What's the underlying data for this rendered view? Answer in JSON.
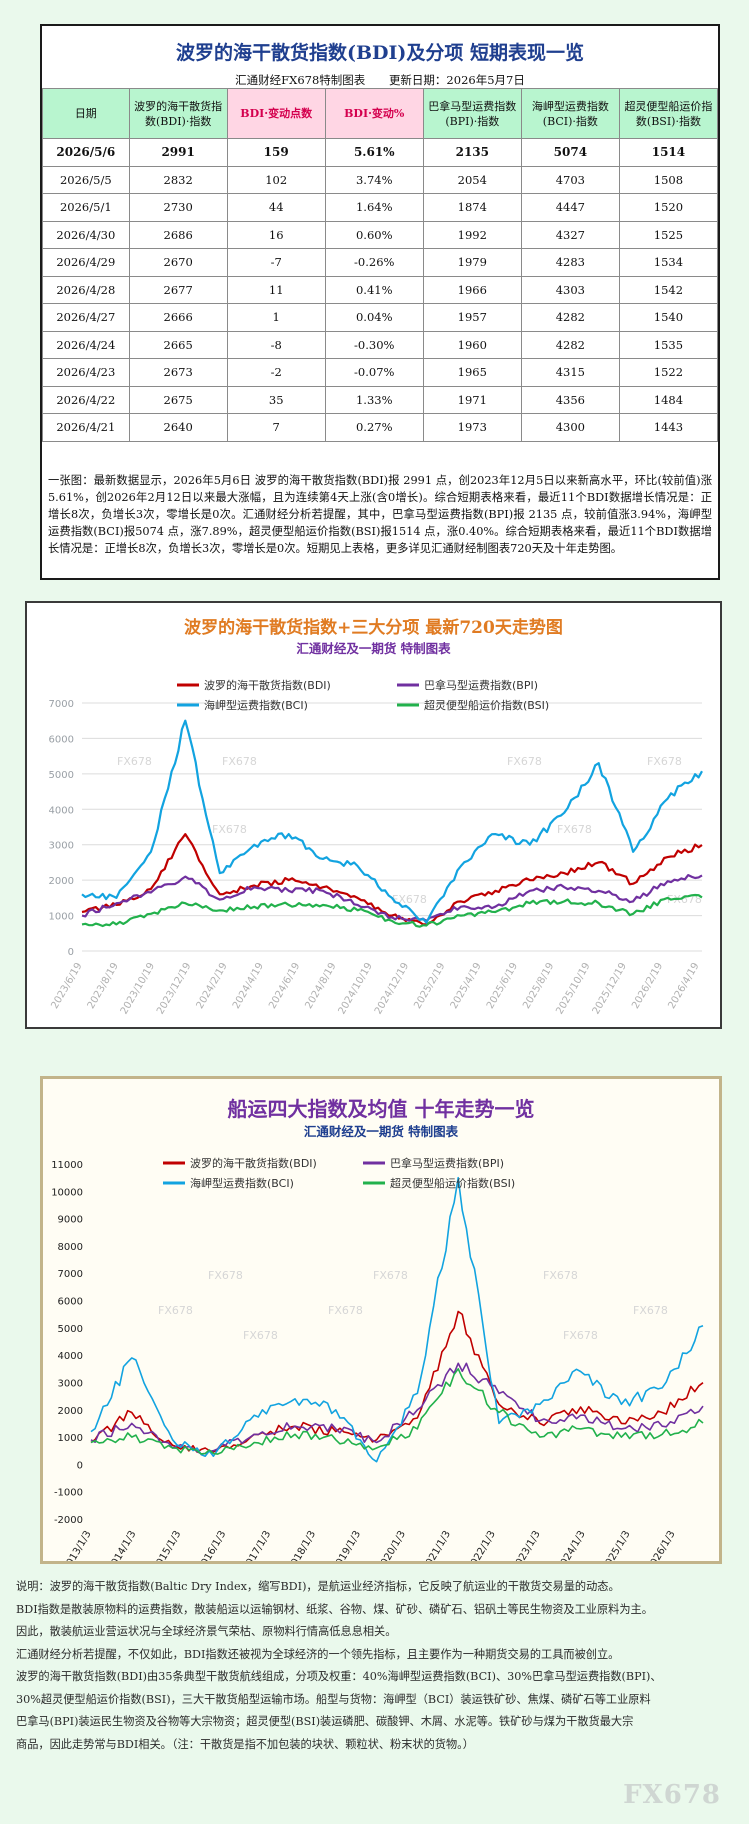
{
  "table_panel": {
    "title": "波罗的海干散货指数(BDI)及分项  短期表现一览",
    "subtitle_left": "汇通财经FX678特制图表",
    "subtitle_right": "更新日期：2026年5月7日",
    "headers": [
      "日期",
      "波罗的海干散货指数(BDI)·指数",
      "BDI·变动点数",
      "BDI·变动%",
      "巴拿马型运费指数(BPI)·指数",
      "海岬型运费指数(BCI)·指数",
      "超灵便型船运价指数(BSI)·指数"
    ],
    "highlight_colors": {
      "header_bg": "#b8f5cf",
      "highlight_bg": "#ffd6e4",
      "highlight_text": "#d4004e"
    },
    "rows": [
      [
        "2026/5/6",
        "2991",
        "159",
        "5.61%",
        "2135",
        "5074",
        "1514"
      ],
      [
        "2026/5/5",
        "2832",
        "102",
        "3.74%",
        "2054",
        "4703",
        "1508"
      ],
      [
        "2026/5/1",
        "2730",
        "44",
        "1.64%",
        "1874",
        "4447",
        "1520"
      ],
      [
        "2026/4/30",
        "2686",
        "16",
        "0.60%",
        "1992",
        "4327",
        "1525"
      ],
      [
        "2026/4/29",
        "2670",
        "-7",
        "-0.26%",
        "1979",
        "4283",
        "1534"
      ],
      [
        "2026/4/28",
        "2677",
        "11",
        "0.41%",
        "1966",
        "4303",
        "1542"
      ],
      [
        "2026/4/27",
        "2666",
        "1",
        "0.04%",
        "1957",
        "4282",
        "1540"
      ],
      [
        "2026/4/24",
        "2665",
        "-8",
        "-0.30%",
        "1960",
        "4282",
        "1535"
      ],
      [
        "2026/4/23",
        "2673",
        "-2",
        "-0.07%",
        "1965",
        "4315",
        "1522"
      ],
      [
        "2026/4/22",
        "2675",
        "35",
        "1.33%",
        "1971",
        "4356",
        "1484"
      ],
      [
        "2026/4/21",
        "2640",
        "7",
        "0.27%",
        "1973",
        "4300",
        "1443"
      ]
    ],
    "note": "一张图：最新数据显示，2026年5月6日 波罗的海干散货指数(BDI)报 2991 点，创2023年12月5日以来新高水平，环比(较前值)涨5.61%，创2026年2月12日以来最大涨幅，且为连续第4天上涨(含0增长)。综合短期表格来看，最近11个BDI数据增长情况是：正增长8次，负增长3次，零增长是0次。汇通财经分析若提醒，其中，巴拿马型运费指数(BPI)报 2135 点，较前值涨3.94%，海岬型运费指数(BCI)报5074 点，涨7.89%，超灵便型船运价指数(BSI)报1514 点，涨0.40%。综合短期表格来看，最近11个BDI数据增长情况是：正增长8次，负增长3次，零增长是0次。短期见上表格，更多详见汇通财经制图表720天及十年走势图。"
  },
  "chart_data": [
    {
      "type": "line",
      "title": "波罗的海干散货指数+三大分项  最新720天走势图",
      "subtitle": "汇通财经及一期货  特制图表",
      "title_color": "#e07b22",
      "subtitle_color": "#7030a0",
      "watermark": "FX678",
      "x": [
        "2023/6/19",
        "2023/8/19",
        "2023/10/19",
        "2023/12/19",
        "2024/2/19",
        "2024/4/19",
        "2024/6/19",
        "2024/8/19",
        "2024/10/19",
        "2024/12/19",
        "2025/2/19",
        "2025/4/19",
        "2025/6/19",
        "2025/8/19",
        "2025/10/19",
        "2025/12/19",
        "2026/2/19",
        "2026/4/19",
        "2026/5/6"
      ],
      "x_tick_labels": [
        "2023/6/19",
        "2023/8/19",
        "2023/10/19",
        "2023/12/19",
        "2024/2/19",
        "2024/4/19",
        "2024/6/19",
        "2024/8/19",
        "2024/10/19",
        "2024/12/19",
        "2025/2/19",
        "2025/4/19",
        "2025/6/19",
        "2025/8/19",
        "2025/10/19",
        "2025/12/19",
        "2026/2/19",
        "2026/4/19"
      ],
      "ylim": [
        0,
        7000
      ],
      "y_ticks": [
        0,
        1000,
        2000,
        3000,
        4000,
        5000,
        6000,
        7000
      ],
      "grid": true,
      "legend_position": "top",
      "series": [
        {
          "name": "波罗的海干散货指数(BDI)",
          "color": "#c00000",
          "values": [
            1100,
            1300,
            1750,
            3300,
            1600,
            1850,
            2000,
            1800,
            1500,
            1000,
            750,
            1400,
            1700,
            2000,
            2200,
            2500,
            1900,
            2650,
            2991
          ]
        },
        {
          "name": "巴拿马型运费指数(BPI)",
          "color": "#7030a0",
          "values": [
            1000,
            1350,
            1650,
            2100,
            1450,
            1800,
            1700,
            1700,
            1300,
            950,
            850,
            1250,
            1250,
            1700,
            1800,
            1700,
            1400,
            1970,
            2135
          ]
        },
        {
          "name": "海岬型运费指数(BCI)",
          "color": "#12a3e0",
          "values": [
            1600,
            1500,
            2800,
            6500,
            2200,
            3000,
            3300,
            2600,
            2400,
            1500,
            800,
            2400,
            3300,
            3000,
            3900,
            5300,
            2800,
            4300,
            5074
          ]
        },
        {
          "name": "超灵便型船运价指数(BSI)",
          "color": "#22b14c",
          "values": [
            750,
            750,
            1050,
            1350,
            1150,
            1250,
            1300,
            1300,
            1150,
            850,
            720,
            1000,
            1100,
            1350,
            1400,
            1350,
            1050,
            1500,
            1514
          ]
        }
      ]
    },
    {
      "type": "line",
      "title": "船运四大指数及均值  十年走势一览",
      "subtitle": "汇通财经及一期货  特制图表",
      "title_color": "#7030a0",
      "subtitle_color": "#1f3f8f",
      "watermark": "FX678",
      "x": [
        "2013/1/3",
        "2014/1/3",
        "2015/1/3",
        "2016/1/3",
        "2017/1/3",
        "2018/1/3",
        "2019/1/3",
        "2020/1/3",
        "2021/1/3",
        "2021/10/3",
        "2022/1/3",
        "2023/1/3",
        "2024/1/3",
        "2025/1/3",
        "2026/1/3",
        "2026/5/6"
      ],
      "x_tick_labels": [
        "2013/1/3",
        "2014/1/3",
        "2015/1/3",
        "2016/1/3",
        "2017/1/3",
        "2018/1/3",
        "2019/1/3",
        "2020/1/3",
        "2021/1/3",
        "2022/1/3",
        "2023/1/3",
        "2024/1/3",
        "2025/1/3",
        "2026/1/3"
      ],
      "ylim": [
        -2000,
        11000
      ],
      "y_ticks": [
        -2000,
        -1000,
        0,
        1000,
        2000,
        3000,
        4000,
        5000,
        6000,
        7000,
        8000,
        9000,
        10000,
        11000
      ],
      "grid": false,
      "legend_position": "top",
      "series": [
        {
          "name": "波罗的海干散货指数(BDI)",
          "color": "#c00000",
          "values": [
            800,
            1900,
            700,
            450,
            1100,
            1400,
            1200,
            900,
            1700,
            5600,
            2200,
            1500,
            2100,
            1500,
            1900,
            2991
          ]
        },
        {
          "name": "巴拿马型运费指数(BPI)",
          "color": "#7030a0",
          "values": [
            900,
            1500,
            600,
            500,
            1100,
            1400,
            1300,
            800,
            2000,
            3700,
            2600,
            1600,
            1800,
            1300,
            1400,
            2135
          ]
        },
        {
          "name": "海岬型运费指数(BCI)",
          "color": "#12a3e0",
          "values": [
            1200,
            3900,
            900,
            300,
            1800,
            2400,
            2000,
            100,
            2600,
            10500,
            1500,
            2200,
            3400,
            2200,
            2800,
            5074
          ]
        },
        {
          "name": "超灵便型船运价指数(BSI)",
          "color": "#22b14c",
          "values": [
            800,
            1000,
            600,
            400,
            800,
            1100,
            900,
            600,
            1300,
            3500,
            1900,
            1000,
            1300,
            1000,
            1100,
            1514
          ]
        }
      ]
    }
  ],
  "footer": [
    "说明：波罗的海干散货指数(Baltic Dry Index，缩写BDI)，是航运业经济指标，它反映了航运业的干散货交易量的动态。",
    "BDI指数是散装原物料的运费指数，散装船运以运输钢材、纸浆、谷物、煤、矿砂、磷矿石、铝矾土等民生物资及工业原料为主。",
    "因此，散装航运业营运状况与全球经济景气荣枯、原物料行情高低息息相关。",
    "汇通财经分析若提醒，不仅如此，BDI指数还被视为全球经济的一个领先指标，且主要作为一种期货交易的工具而被创立。",
    "波罗的海干散货指数(BDI)由35条典型干散货航线组成，分项及权重：40%海岬型运费指数(BCI)、30%巴拿马型运费指数(BPI)、",
    "30%超灵便型船运价指数(BSI)，三大干散货船型运输市场。船型与货物：海岬型（BCI）装运铁矿砂、焦煤、磷矿石等工业原料",
    "巴拿马(BPI)装运民生物资及谷物等大宗物资；超灵便型(BSI)装运磷肥、碳酸钾、木屑、水泥等。铁矿砂与煤为干散货最大宗",
    "商品，因此走势常与BDI相关。（注：干散货是指不加包装的块状、颗粒状、粉末状的货物。）"
  ],
  "brand_watermark": "FX678"
}
